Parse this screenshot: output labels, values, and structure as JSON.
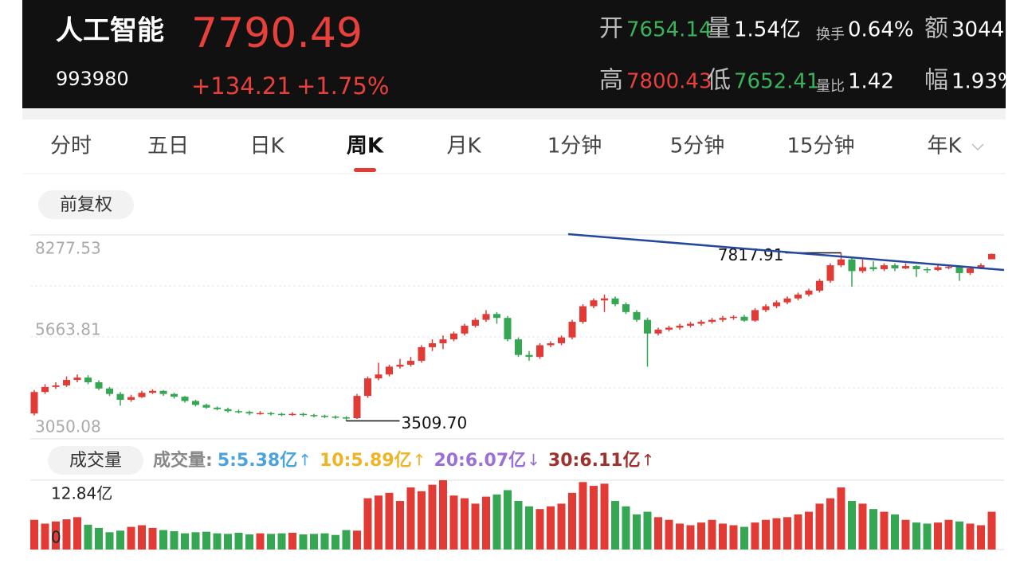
{
  "header": {
    "name": "人工智能",
    "price": "7790.49",
    "code": "993980",
    "change": "+134.21",
    "change_pct": "+1.75%",
    "stats": [
      [
        {
          "label": "开",
          "value": "7654.14",
          "tone": "down"
        },
        {
          "label": "量",
          "value": "1.54亿",
          "tone": "plain"
        },
        {
          "label": "换手",
          "value": "0.64%",
          "tone": "plain",
          "small": true
        },
        {
          "label": "额",
          "value": "3044",
          "tone": "plain"
        }
      ],
      [
        {
          "label": "高",
          "value": "7800.43",
          "tone": "up"
        },
        {
          "label": "低",
          "value": "7652.41",
          "tone": "down"
        },
        {
          "label": "量比",
          "value": "1.42",
          "tone": "plain",
          "small": true
        },
        {
          "label": "幅",
          "value": "1.93%",
          "tone": "plain"
        }
      ]
    ]
  },
  "tabs": {
    "items": [
      "分时",
      "五日",
      "日K",
      "周K",
      "月K",
      "1分钟",
      "5分钟",
      "15分钟",
      "年K"
    ],
    "active": 3
  },
  "adjust_button": "前复权",
  "volume_button": "成交量",
  "volume_legend": {
    "title": "成交量:",
    "items": [
      {
        "text": "5:5.38亿",
        "arrow": "↑",
        "color": "#4aa3df"
      },
      {
        "text": "10:5.89亿",
        "arrow": "↑",
        "color": "#f0b323"
      },
      {
        "text": "20:6.07亿",
        "arrow": "↓",
        "color": "#9b6fd6"
      },
      {
        "text": "30:6.11亿",
        "arrow": "↑",
        "color": "#a0302c"
      }
    ]
  },
  "chart_data": [
    {
      "type": "candlestick",
      "up_color": "#e23b36",
      "down_color": "#35a652",
      "ylim": [
        3050.08,
        8277.53
      ],
      "yticks": [
        8277.53,
        5663.81,
        3050.08
      ],
      "annotations": [
        7817.91,
        {
          "value": 3509.7,
          "label": "3509.70"
        }
      ],
      "open": [
        3700,
        4250,
        4380,
        4420,
        4560,
        4620,
        4500,
        4340,
        4200,
        4050,
        4120,
        4230,
        4280,
        4200,
        4130,
        4020,
        3920,
        3850,
        3810,
        3760,
        3740,
        3700,
        3710,
        3690,
        3670,
        3690,
        3660,
        3640,
        3620,
        3600,
        3580,
        4150,
        4600,
        4700,
        4900,
        4950,
        5050,
        5400,
        5500,
        5600,
        5750,
        5950,
        6100,
        6250,
        6150,
        5600,
        5200,
        5150,
        5450,
        5500,
        5650,
        6050,
        6450,
        6600,
        6650,
        6500,
        6300,
        6100,
        5750,
        5850,
        5900,
        5950,
        6000,
        6050,
        6100,
        6150,
        6180,
        6080,
        6350,
        6450,
        6550,
        6650,
        6750,
        6850,
        7100,
        7500,
        7650,
        7350,
        7450,
        7400,
        7500,
        7420,
        7480,
        7400,
        7380,
        7450,
        7460,
        7300,
        7420,
        7654.14
      ],
      "high": [
        4300,
        4450,
        4500,
        4650,
        4700,
        4680,
        4550,
        4380,
        4250,
        4180,
        4280,
        4320,
        4300,
        4230,
        4150,
        4050,
        3950,
        3880,
        3850,
        3800,
        3770,
        3760,
        3740,
        3720,
        3730,
        3720,
        3690,
        3670,
        3650,
        3630,
        4200,
        4650,
        5000,
        4950,
        5100,
        5150,
        5450,
        5600,
        5700,
        5800,
        6000,
        6150,
        6350,
        6300,
        6200,
        5650,
        5300,
        5500,
        5550,
        5700,
        6100,
        6500,
        6650,
        6750,
        6700,
        6550,
        6350,
        6150,
        5900,
        5950,
        6000,
        6050,
        6100,
        6150,
        6200,
        6220,
        6230,
        6400,
        6500,
        6600,
        6700,
        6800,
        6900,
        7150,
        7550,
        7817.91,
        7700,
        7650,
        7600,
        7550,
        7550,
        7550,
        7500,
        7450,
        7500,
        7520,
        7500,
        7450,
        7550,
        7800.43
      ],
      "low": [
        3650,
        4200,
        4330,
        4380,
        4500,
        4450,
        4300,
        4150,
        3900,
        4000,
        4100,
        4200,
        4150,
        4080,
        3980,
        3880,
        3820,
        3780,
        3720,
        3700,
        3660,
        3670,
        3650,
        3630,
        3640,
        3620,
        3600,
        3580,
        3560,
        3509.7,
        3560,
        4100,
        4550,
        4650,
        4850,
        4900,
        5000,
        5300,
        5350,
        5550,
        5700,
        5900,
        6050,
        6000,
        5550,
        5150,
        5050,
        5100,
        5400,
        5450,
        5600,
        6000,
        6400,
        6300,
        6450,
        6250,
        6050,
        4900,
        5700,
        5800,
        5850,
        5900,
        5950,
        6000,
        6050,
        6100,
        6050,
        6050,
        6300,
        6400,
        6500,
        6600,
        6700,
        6800,
        7050,
        7450,
        6950,
        7300,
        7350,
        7350,
        7350,
        7400,
        7200,
        7300,
        7350,
        7400,
        7100,
        7250,
        7400,
        7652.41
      ],
      "close": [
        4250,
        4380,
        4420,
        4560,
        4620,
        4500,
        4340,
        4200,
        4050,
        4120,
        4230,
        4280,
        4200,
        4130,
        4020,
        3920,
        3850,
        3810,
        3760,
        3740,
        3700,
        3710,
        3690,
        3670,
        3690,
        3660,
        3640,
        3620,
        3600,
        3580,
        4150,
        4600,
        4700,
        4900,
        4950,
        5050,
        5400,
        5500,
        5600,
        5750,
        5950,
        6100,
        6250,
        6150,
        5600,
        5200,
        5150,
        5450,
        5500,
        5650,
        6050,
        6450,
        6600,
        6650,
        6500,
        6300,
        6100,
        5750,
        5850,
        5900,
        5950,
        6000,
        6050,
        6100,
        6150,
        6180,
        6080,
        6350,
        6450,
        6550,
        6650,
        6750,
        6850,
        7100,
        7500,
        7650,
        7350,
        7450,
        7400,
        7500,
        7420,
        7480,
        7400,
        7380,
        7450,
        7460,
        7300,
        7420,
        7500,
        7790.49
      ]
    },
    {
      "type": "bar",
      "ylim": [
        0,
        12.84
      ],
      "yticks": [
        {
          "value": 12.84,
          "label": "12.84亿"
        },
        0
      ],
      "values": [
        5.5,
        4.8,
        5.2,
        5.6,
        6.0,
        4.6,
        4.0,
        3.2,
        3.5,
        4.2,
        4.5,
        4.0,
        3.6,
        3.4,
        3.0,
        3.2,
        3.3,
        3.0,
        2.9,
        3.1,
        2.8,
        3.0,
        2.9,
        3.0,
        3.1,
        2.8,
        2.9,
        3.0,
        2.7,
        3.6,
        3.5,
        9.5,
        10.0,
        10.5,
        9.0,
        11.5,
        10.8,
        12.0,
        12.84,
        10.0,
        9.5,
        8.5,
        9.8,
        10.2,
        11.0,
        9.0,
        8.0,
        7.5,
        8.0,
        8.5,
        10.5,
        12.5,
        11.8,
        12.2,
        9.0,
        8.0,
        6.5,
        7.0,
        6.0,
        5.5,
        4.8,
        4.5,
        5.0,
        5.5,
        4.8,
        4.5,
        4.2,
        5.0,
        5.5,
        5.8,
        6.0,
        6.5,
        7.0,
        8.5,
        9.5,
        11.5,
        9.0,
        8.5,
        7.5,
        7.0,
        6.5,
        5.5,
        5.0,
        4.8,
        5.0,
        5.5,
        5.2,
        4.8,
        4.5,
        7.0
      ]
    }
  ]
}
